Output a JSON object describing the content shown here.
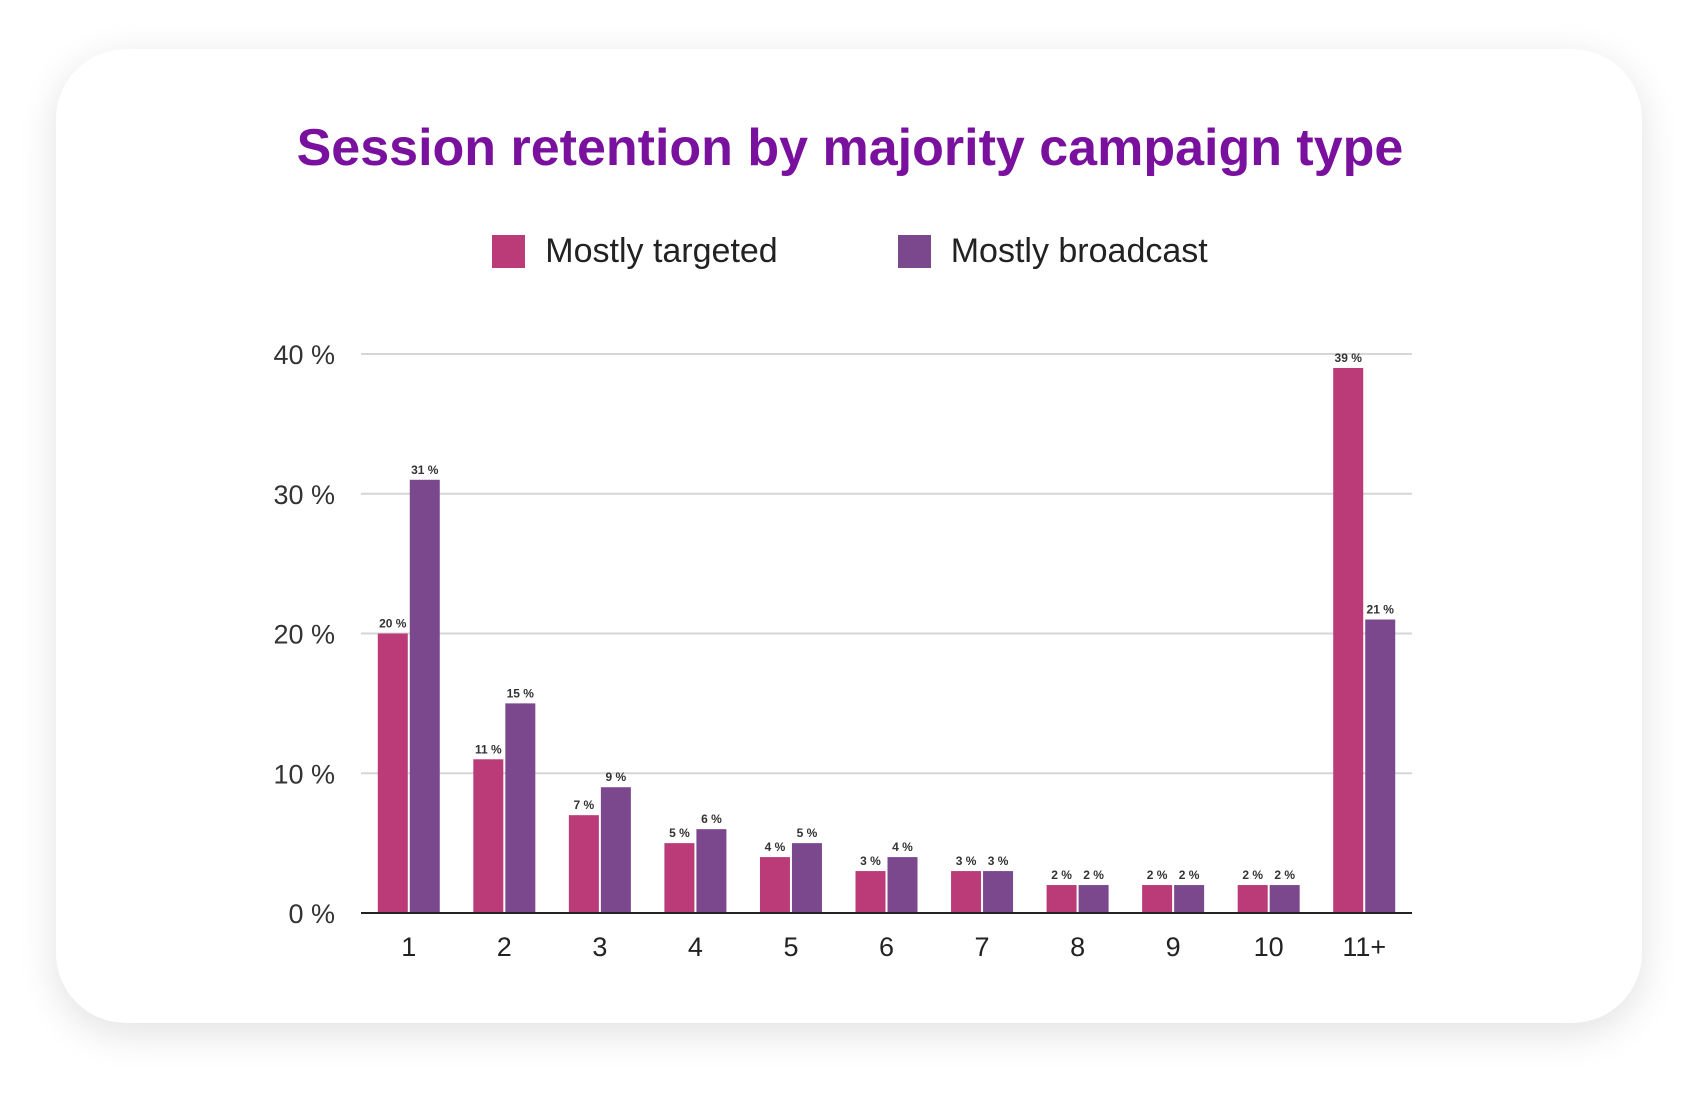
{
  "chart_data": {
    "type": "bar",
    "title": "Session retention by majority campaign type",
    "categories": [
      "1",
      "2",
      "3",
      "4",
      "5",
      "6",
      "7",
      "8",
      "9",
      "10",
      "11+"
    ],
    "series": [
      {
        "name": "Mostly targeted",
        "color": "#bb3a78",
        "values": [
          20,
          11,
          7,
          5,
          4,
          3,
          3,
          2,
          2,
          2,
          39
        ]
      },
      {
        "name": "Mostly broadcast",
        "color": "#7b488e",
        "values": [
          31,
          15,
          9,
          6,
          5,
          4,
          3,
          2,
          2,
          2,
          21
        ]
      }
    ],
    "ylim": [
      0,
      40
    ],
    "yticks": [
      "0 %",
      "10 %",
      "20 %",
      "30 %",
      "40 %"
    ],
    "value_suffix": " %",
    "grid": true,
    "legend": "top"
  }
}
